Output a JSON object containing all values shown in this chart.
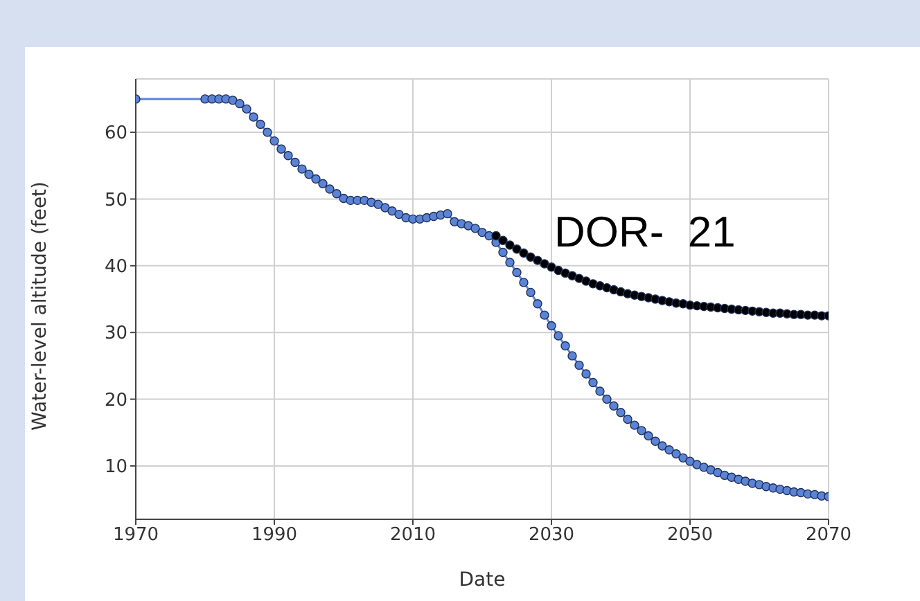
{
  "chart_data": {
    "type": "line",
    "xlabel": "Date",
    "ylabel": "Water-level altitude (feet)",
    "annotations": [
      "DOR-  21"
    ],
    "xlim": [
      1970,
      2070
    ],
    "xticks": [
      1970,
      1990,
      2010,
      2030,
      2050,
      2070
    ],
    "ylim": [
      2,
      68
    ],
    "yticks": [
      10,
      20,
      30,
      40,
      50,
      60
    ],
    "grid": true,
    "marker": "circle",
    "legend": false,
    "series": [
      {
        "color": "#5b84d6",
        "x": [
          1970,
          1980,
          1981,
          1982,
          1983,
          1984,
          1985,
          1986,
          1987,
          1988,
          1989,
          1990,
          1991,
          1992,
          1993,
          1994,
          1995,
          1996,
          1997,
          1998,
          1999,
          2000,
          2001,
          2002,
          2003,
          2004,
          2005,
          2006,
          2007,
          2008,
          2009,
          2010,
          2011,
          2012,
          2013,
          2014,
          2015,
          2016,
          2017,
          2018,
          2019,
          2020,
          2021,
          2022,
          2023,
          2024,
          2025,
          2026,
          2027,
          2028,
          2029,
          2030,
          2031,
          2032,
          2033,
          2034,
          2035,
          2036,
          2037,
          2038,
          2039,
          2040,
          2041,
          2042,
          2043,
          2044,
          2045,
          2046,
          2047,
          2048,
          2049,
          2050,
          2051,
          2052,
          2053,
          2054,
          2055,
          2056,
          2057,
          2058,
          2059,
          2060,
          2061,
          2062,
          2063,
          2064,
          2065,
          2066,
          2067,
          2068,
          2069,
          2070
        ],
        "values": [
          65,
          65,
          65,
          65,
          65,
          64.8,
          64.3,
          63.5,
          62.3,
          61.2,
          60,
          58.7,
          57.5,
          56.5,
          55.5,
          54.5,
          53.7,
          53,
          52.3,
          51.5,
          50.8,
          50.1,
          49.8,
          49.8,
          49.8,
          49.5,
          49.2,
          48.7,
          48.2,
          47.7,
          47.2,
          47,
          47,
          47.2,
          47.4,
          47.6,
          47.8,
          46.6,
          46.3,
          46,
          45.6,
          45,
          44.5,
          43.5,
          42,
          40.5,
          39,
          37.5,
          36,
          34.3,
          32.6,
          31,
          29.5,
          28,
          26.5,
          25.1,
          23.8,
          22.5,
          21.2,
          20,
          19,
          18,
          17,
          16.1,
          15.3,
          14.5,
          13.7,
          13,
          12.4,
          11.8,
          11.2,
          10.7,
          10.2,
          9.8,
          9.4,
          9,
          8.6,
          8.3,
          8,
          7.7,
          7.4,
          7.2,
          6.9,
          6.7,
          6.5,
          6.3,
          6.1,
          6,
          5.8,
          5.7,
          5.5,
          5.4
        ]
      },
      {
        "type": "scatter",
        "color": "#000000",
        "x": [
          2022,
          2023,
          2024,
          2025,
          2026,
          2027,
          2028,
          2029,
          2030,
          2031,
          2032,
          2033,
          2034,
          2035,
          2036,
          2037,
          2038,
          2039,
          2040,
          2041,
          2042,
          2043,
          2044,
          2045,
          2046,
          2047,
          2048,
          2049,
          2050,
          2051,
          2052,
          2053,
          2054,
          2055,
          2056,
          2057,
          2058,
          2059,
          2060,
          2061,
          2062,
          2063,
          2064,
          2065,
          2066,
          2067,
          2068,
          2069,
          2070
        ],
        "values": [
          44.5,
          43.8,
          43.1,
          42.5,
          41.9,
          41.3,
          40.8,
          40.3,
          39.8,
          39.3,
          38.9,
          38.5,
          38.1,
          37.7,
          37.3,
          37,
          36.7,
          36.4,
          36.1,
          35.8,
          35.6,
          35.4,
          35.2,
          35,
          34.8,
          34.6,
          34.4,
          34.3,
          34.1,
          34,
          33.9,
          33.8,
          33.7,
          33.6,
          33.5,
          33.4,
          33.3,
          33.2,
          33.1,
          33,
          32.9,
          32.9,
          32.8,
          32.7,
          32.7,
          32.6,
          32.6,
          32.5,
          32.5
        ]
      }
    ]
  }
}
